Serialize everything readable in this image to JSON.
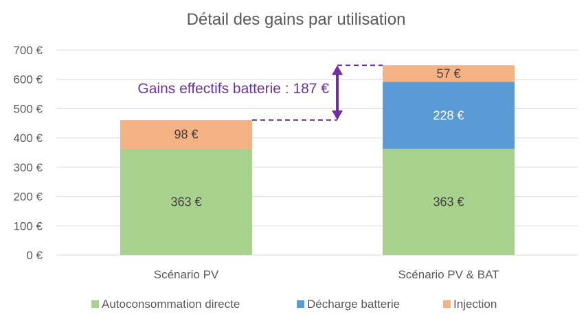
{
  "chart_data": {
    "type": "bar",
    "stacked": true,
    "title": "Détail des gains par utilisation",
    "categories": [
      "Scénario PV",
      "Scénario PV & BAT"
    ],
    "series": [
      {
        "name": "Autoconsommation directe",
        "values": [
          363,
          363
        ],
        "labels": [
          "363 €",
          "363 €"
        ],
        "color": "#a9d18e",
        "label_color": "#404040"
      },
      {
        "name": "Décharge batterie",
        "values": [
          0,
          228
        ],
        "labels": [
          "",
          "228 €"
        ],
        "color": "#5b9bd5",
        "label_color": "#ffffff"
      },
      {
        "name": "Injection",
        "values": [
          98,
          57
        ],
        "labels": [
          "98 €",
          "57 €"
        ],
        "color": "#f4b183",
        "label_color": "#404040"
      }
    ],
    "ylim": [
      0,
      700
    ],
    "yticks": [
      0,
      100,
      200,
      300,
      400,
      500,
      600,
      700
    ],
    "ytick_labels": [
      "0 €",
      "100 €",
      "200 €",
      "300 €",
      "400 €",
      "500 €",
      "600 €",
      "700 €"
    ],
    "grid": true,
    "legend_position": "bottom",
    "annotation": {
      "text": "Gains effectifs batterie : 187 €",
      "from_value": 461,
      "to_value": 648,
      "color": "#7030a0"
    }
  }
}
